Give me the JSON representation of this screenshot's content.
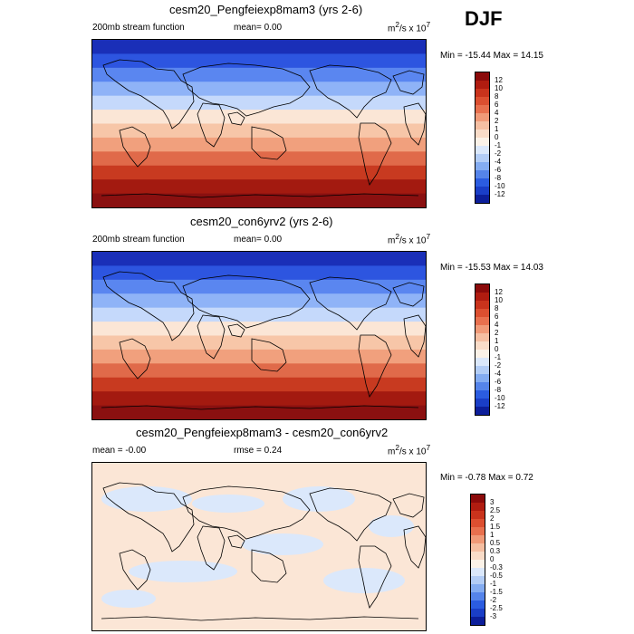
{
  "season": "DJF",
  "panels": [
    {
      "title": "cesm20_Pengfeiexp8mam3 (yrs 2-6)",
      "left_label": "200mb stream function",
      "mid_label": "mean=  0.00",
      "units_html": "m<sup>2</sup>/s x 10<sup>7</sup>",
      "minmax": "Min = -15.44 Max =  14.15",
      "bands": [
        "#1a2fb8",
        "#2d55e0",
        "#5a86f0",
        "#8fb3f7",
        "#c5d9fb",
        "#fbe6d6",
        "#f7c6a8",
        "#f1a07d",
        "#e06a4a",
        "#c83a20",
        "#a31a10",
        "#8a1010"
      ],
      "colorbar": {
        "labels": [
          "12",
          "10",
          "8",
          "6",
          "4",
          "2",
          "1",
          "0",
          "-1",
          "-2",
          "-4",
          "-6",
          "-8",
          "-10",
          "-12"
        ],
        "colors": [
          "#8b0a0a",
          "#b01c10",
          "#c9331c",
          "#dc4f30",
          "#e8704e",
          "#f09a78",
          "#f5bfa2",
          "#f9dcc8",
          "#fbf2e8",
          "#dbe8fb",
          "#b3cdf6",
          "#84acf1",
          "#5584ea",
          "#2b5ce0",
          "#1a3ec7",
          "#0c1e9a"
        ]
      }
    },
    {
      "title": "cesm20_con6yrv2 (yrs 2-6)",
      "left_label": "200mb stream function",
      "mid_label": "mean=  0.00",
      "units_html": "m<sup>2</sup>/s x 10<sup>7</sup>",
      "minmax": "Min = -15.53 Max =  14.03",
      "bands": [
        "#1a2fb8",
        "#2d55e0",
        "#5a86f0",
        "#8fb3f7",
        "#c5d9fb",
        "#fbe6d6",
        "#f7c6a8",
        "#f1a07d",
        "#e06a4a",
        "#c83a20",
        "#a31a10",
        "#8a1010"
      ],
      "colorbar": {
        "labels": [
          "12",
          "10",
          "8",
          "6",
          "4",
          "2",
          "1",
          "0",
          "-1",
          "-2",
          "-4",
          "-6",
          "-8",
          "-10",
          "-12"
        ],
        "colors": [
          "#8b0a0a",
          "#b01c10",
          "#c9331c",
          "#dc4f30",
          "#e8704e",
          "#f09a78",
          "#f5bfa2",
          "#f9dcc8",
          "#fbf2e8",
          "#dbe8fb",
          "#b3cdf6",
          "#84acf1",
          "#5584ea",
          "#2b5ce0",
          "#1a3ec7",
          "#0c1e9a"
        ]
      }
    },
    {
      "title": "cesm20_Pengfeiexp8mam3 - cesm20_con6yrv2",
      "left_label": "mean =  -0.00",
      "mid_label": "rmse =   0.24",
      "units_html": "m<sup>2</sup>/s x 10<sup>7</sup>",
      "minmax": "Min =  -0.78 Max =   0.72",
      "bands": [
        "#dbe8fb",
        "#fbe6d6"
      ],
      "colorbar": {
        "labels": [
          "3",
          "2.5",
          "2",
          "1.5",
          "1",
          "0.5",
          "0.3",
          "0",
          "-0.3",
          "-0.5",
          "-1",
          "-1.5",
          "-2",
          "-2.5",
          "-3"
        ],
        "colors": [
          "#8b0a0a",
          "#b01c10",
          "#c9331c",
          "#dc4f30",
          "#e8704e",
          "#f09a78",
          "#f5bfa2",
          "#f9dcc8",
          "#fbf2e8",
          "#dbe8fb",
          "#b3cdf6",
          "#84acf1",
          "#5584ea",
          "#2b5ce0",
          "#1a3ec7",
          "#0c1e9a"
        ]
      }
    }
  ]
}
